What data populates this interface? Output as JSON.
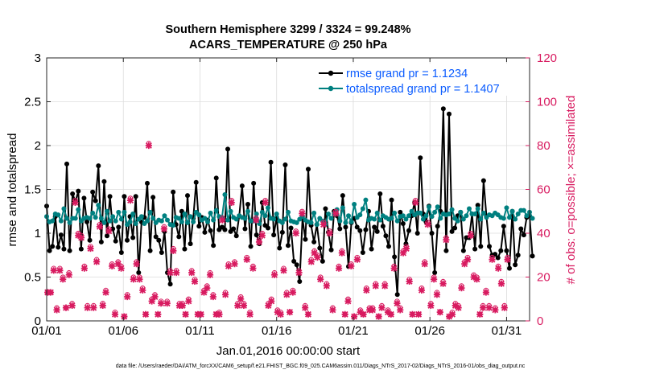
{
  "chart_data": {
    "type": "line",
    "title": [
      "Southern Hemisphere 3299 / 3324 = 99.248%",
      "ACARS_TEMPERATURE @ 250 hPa"
    ],
    "xlabel": "Jan.01,2016 00:00:00 start",
    "ylabel_left": "rmse and totalspread",
    "ylabel_right": "# of obs: o=possible; ×=assimilated",
    "xlim": [
      0,
      31.5
    ],
    "ylim_left": [
      0,
      3
    ],
    "ylim_right": [
      0,
      120
    ],
    "x_tick_values": [
      0,
      5,
      10,
      15,
      20,
      25,
      30
    ],
    "x_tick_labels": [
      "01/01",
      "01/06",
      "01/11",
      "01/16",
      "01/21",
      "01/26",
      "01/31"
    ],
    "y_left_ticks": [
      "0",
      "0.5",
      "1",
      "1.5",
      "2",
      "2.5",
      "3"
    ],
    "y_right_ticks": [
      "0",
      "20",
      "40",
      "60",
      "80",
      "100",
      "120"
    ],
    "legend": [
      {
        "label": "rmse grand pr = 1.1234",
        "color": "#000000"
      },
      {
        "label": "totalspread grand pr = 1.1407",
        "color": "#008080"
      }
    ],
    "series": [
      {
        "name": "rmse",
        "axis": "left",
        "color": "#000000",
        "values": [
          1.31,
          0.8,
          0.85,
          1.19,
          0.84,
          0.98,
          0.82,
          1.79,
          0.8,
          1.45,
          1.36,
          1.48,
          0.82,
          1.4,
          1.13,
          0.92,
          1.47,
          1.37,
          1.77,
          0.9,
          1.59,
          0.97,
          1.42,
          1.05,
          0.91,
          1.07,
          0.78,
          1.42,
          0.92,
          1.19,
          0.95,
          1.42,
          0.55,
          1.13,
          1.18,
          1.57,
          0.8,
          1.41,
          0.96,
          0.92,
          0.78,
          1.02,
          0.55,
          0.42,
          1.47,
          1.1,
          0.96,
          1.25,
          0.82,
          1.43,
          0.88,
          1.17,
          1.58,
          1.08,
          1.18,
          1.01,
          1.15,
          1.03,
          0.86,
          1.63,
          1.04,
          1.07,
          1.04,
          1.96,
          1.02,
          1.05,
          0.97,
          1.2,
          1.54,
          1.05,
          1.33,
          0.85,
          1.57,
          0.98,
          0.88,
          1.35,
          1.09,
          1.06,
          1.81,
          0.98,
          1.18,
          0.83,
          1.01,
          1.78,
          0.86,
          1.06,
          0.68,
          0.64,
          0.45,
          1.17,
          0.93,
          1.73,
          1.09,
          0.9,
          1.1,
          0.83,
          0.68,
          1.28,
          1.01,
          0.81,
          1.25,
          1.2,
          1.05,
          1.43,
          1.07,
          0.62,
          1.12,
          1.17,
          1.07,
          1.03,
          0.78,
          1.04,
          1.25,
          0.82,
          1.07,
          1.02,
          1.45,
          1.08,
          0.97,
          0.85,
          1.38,
          0.73,
          0.3,
          1.24,
          1.11,
          0.88,
          1.03,
          1.2,
          1.35,
          1.0,
          1.86,
          1.22,
          1.13,
          1.31,
          1.0,
          0.55,
          1.08,
          1.25,
          2.42,
          0.8,
          2.36,
          1.02,
          1.06,
          1.2,
          1.24,
          0.8,
          0.95,
          0.95,
          1.22,
          0.82,
          1.32,
          0.85,
          1.6,
          1.19,
          0.85,
          0.75,
          0.76,
          0.72,
          0.8,
          1.08,
          0.8,
          0.6,
          1.25,
          0.64,
          0.75,
          1.05,
          0.98,
          1.18,
          1.2,
          0.74
        ],
        "x_start": 0,
        "x_step": 0.1875
      },
      {
        "name": "totalspread",
        "axis": "left",
        "color": "#008080",
        "values": [
          1.19,
          1.13,
          1.14,
          1.22,
          1.21,
          1.14,
          1.28,
          1.17,
          1.12,
          1.17,
          1.17,
          1.27,
          1.14,
          1.17,
          1.18,
          1.17,
          1.23,
          1.18,
          1.32,
          1.17,
          1.12,
          1.25,
          1.14,
          1.19,
          1.14,
          1.24,
          1.16,
          1.24,
          1.1,
          1.13,
          1.22,
          1.11,
          1.16,
          1.19,
          1.11,
          1.14,
          1.24,
          1.17,
          1.12,
          1.15,
          1.14,
          1.2,
          1.15,
          1.1,
          1.09,
          1.18,
          1.17,
          1.13,
          1.22,
          1.12,
          1.19,
          1.13,
          1.24,
          1.21,
          1.15,
          1.17,
          1.13,
          1.23,
          1.15,
          1.26,
          1.19,
          1.18,
          1.44,
          1.15,
          1.25,
          1.18,
          1.16,
          1.2,
          1.18,
          1.17,
          1.25,
          1.14,
          1.14,
          1.22,
          1.11,
          1.24,
          1.2,
          1.29,
          1.17,
          1.16,
          1.22,
          1.14,
          1.12,
          1.16,
          1.24,
          1.14,
          1.13,
          1.12,
          1.16,
          1.19,
          1.15,
          1.13,
          1.12,
          1.23,
          1.1,
          1.17,
          1.14,
          1.1,
          1.22,
          1.17,
          1.22,
          1.27,
          1.14,
          1.29,
          1.12,
          1.2,
          1.13,
          1.33,
          1.18,
          1.21,
          1.28,
          1.38,
          1.15,
          1.17,
          1.16,
          1.23,
          1.15,
          1.2,
          1.18,
          1.16,
          1.17,
          1.23,
          1.14,
          1.19,
          1.2,
          1.16,
          1.2,
          1.25,
          1.21,
          1.23,
          1.23,
          1.16,
          1.2,
          1.3,
          1.19,
          1.24,
          1.3,
          1.17,
          1.22,
          1.21,
          1.22,
          1.27,
          1.17,
          1.14,
          1.24,
          1.16,
          1.2,
          1.28,
          1.22,
          1.22,
          1.28,
          1.16,
          1.23,
          1.18,
          1.21,
          1.2,
          1.23,
          1.21,
          1.18,
          1.17,
          1.29,
          1.18,
          1.25,
          1.16,
          1.22,
          1.26,
          1.26,
          1.2,
          1.24,
          1.17
        ],
        "x_start": 0,
        "x_step": 0.1875
      },
      {
        "name": "obs possible",
        "axis": "right",
        "marker": "o",
        "color": "#d81b60",
        "values": [
          13,
          13,
          24,
          6,
          24,
          20,
          6,
          22,
          8,
          55,
          40,
          39,
          25,
          7,
          34,
          7,
          28,
          44,
          8,
          14,
          42,
          26,
          4,
          27,
          25,
          2,
          12,
          56,
          20,
          27,
          20,
          15,
          3,
          81,
          10,
          12,
          3,
          9,
          43,
          9,
          23,
          33,
          23,
          8,
          8,
          3,
          10,
          23,
          19,
          3,
          3,
          14,
          16,
          22,
          12,
          3,
          4,
          47,
          13,
          26,
          55,
          27,
          8,
          11,
          8,
          29,
          4,
          25,
          47,
          37,
          40,
          55,
          8,
          10,
          22,
          5,
          4,
          24,
          13,
          4,
          14,
          41,
          23,
          50,
          7,
          3,
          28,
          32,
          30,
          20,
          45,
          17,
          41,
          6,
          50,
          25,
          32,
          3,
          10,
          26,
          2,
          29,
          5,
          3,
          15,
          6,
          6,
          17,
          2,
          7,
          17,
          5,
          3,
          25,
          9,
          6,
          32,
          34,
          19,
          3,
          55,
          3,
          15,
          27,
          45,
          8,
          20,
          13,
          4,
          18,
          38,
          2,
          4,
          8,
          7,
          16,
          27,
          29,
          40,
          21,
          20,
          3,
          7,
          14,
          7,
          29,
          6,
          25,
          18,
          7,
          29
        ],
        "x_start": 0.06,
        "x_step": 0.2
      },
      {
        "name": "obs assimilated",
        "axis": "right",
        "marker": "x",
        "color": "#d81b60",
        "values": [
          13,
          13,
          23,
          5,
          23,
          19,
          6,
          21,
          7,
          54,
          39,
          38,
          24,
          6,
          33,
          6,
          27,
          43,
          7,
          13,
          41,
          25,
          3,
          26,
          24,
          2,
          11,
          55,
          19,
          26,
          19,
          14,
          3,
          80,
          9,
          11,
          3,
          8,
          42,
          8,
          22,
          32,
          22,
          7,
          7,
          3,
          9,
          22,
          18,
          3,
          3,
          13,
          15,
          21,
          11,
          3,
          3,
          46,
          12,
          25,
          54,
          26,
          7,
          10,
          7,
          28,
          3,
          24,
          46,
          36,
          39,
          54,
          7,
          9,
          21,
          4,
          3,
          23,
          12,
          4,
          13,
          40,
          22,
          49,
          6,
          3,
          27,
          31,
          29,
          19,
          44,
          16,
          40,
          5,
          49,
          24,
          31,
          3,
          9,
          25,
          2,
          28,
          4,
          3,
          14,
          5,
          5,
          16,
          2,
          6,
          16,
          4,
          3,
          24,
          8,
          5,
          31,
          33,
          18,
          3,
          54,
          3,
          14,
          26,
          44,
          7,
          19,
          12,
          4,
          17,
          37,
          2,
          3,
          7,
          6,
          15,
          26,
          28,
          39,
          20,
          19,
          3,
          6,
          13,
          6,
          28,
          5,
          24,
          17,
          6,
          28
        ],
        "x_start": 0.06,
        "x_step": 0.2
      }
    ]
  },
  "footer": "data file: /Users/raeder/DAI/ATM_forcXX/CAM6_setup/f.e21.FHIST_BGC.f09_025.CAM6assim.011/Diags_NTrS_2017-02/Diags_NTrS_2016-01/obs_diag_output.nc"
}
